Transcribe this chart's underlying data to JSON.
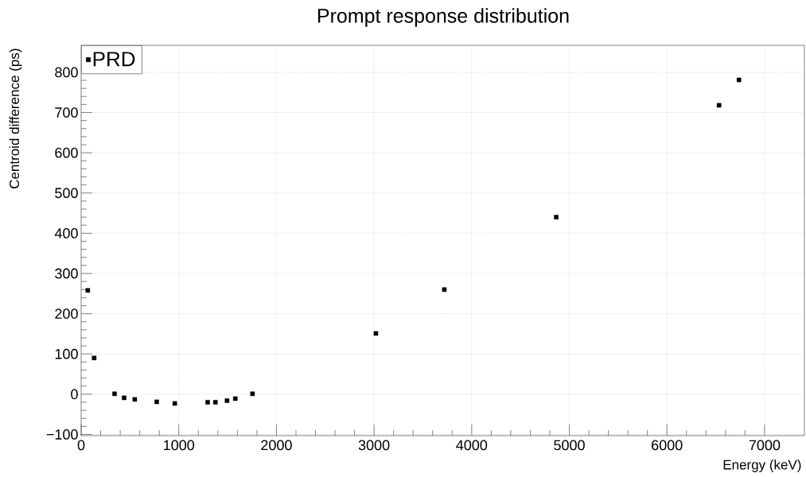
{
  "chart_data": {
    "type": "scatter",
    "title": "Prompt response distribution",
    "xlabel": "Energy (keV)",
    "ylabel": "Centroid difference (ps)",
    "x": [
      68,
      133,
      342,
      440,
      549,
      774,
      959,
      1296,
      1375,
      1494,
      1579,
      1755,
      3019,
      3720,
      4866,
      6534,
      6738
    ],
    "series": [
      {
        "name": "PRD",
        "color": "#000000",
        "values": [
          258,
          90,
          1,
          -9,
          -13,
          -19,
          -23,
          -20,
          -20,
          -16,
          -11,
          1,
          151,
          260,
          440,
          718,
          781
        ]
      }
    ],
    "xlim": [
      0,
      7408
    ],
    "ylim": [
      -103,
      867
    ],
    "xticks": [
      0,
      1000,
      2000,
      3000,
      4000,
      5000,
      6000,
      7000
    ],
    "yticks": [
      {
        "value": -100,
        "label": "−100"
      },
      0,
      100,
      200,
      300,
      400,
      500,
      600,
      700,
      800
    ],
    "grid": true,
    "legend": "top left",
    "marker": "square"
  }
}
